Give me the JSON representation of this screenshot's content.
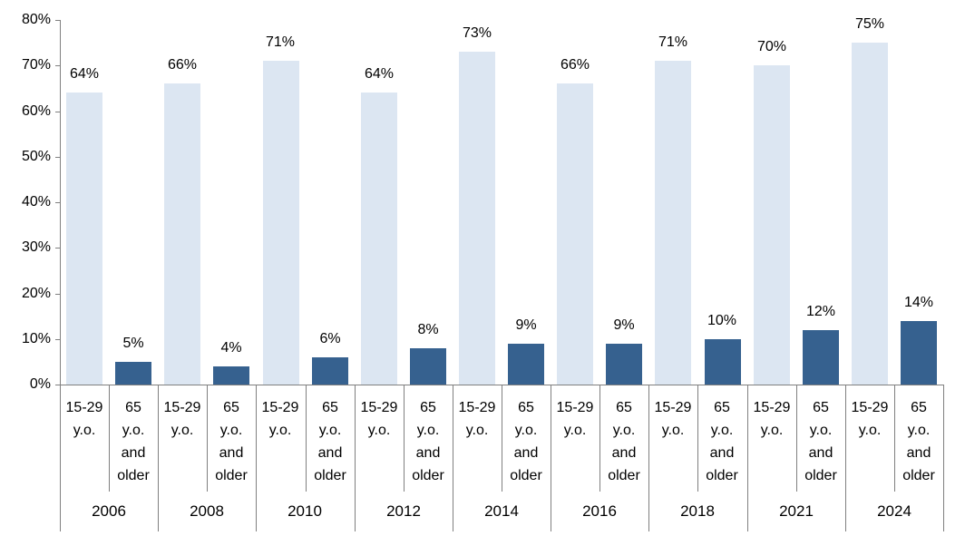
{
  "chart_data": {
    "type": "bar",
    "title": "",
    "xlabel": "",
    "ylabel": "",
    "categories": [
      "2006",
      "2008",
      "2010",
      "2012",
      "2014",
      "2016",
      "2018",
      "2021",
      "2024"
    ],
    "series": [
      {
        "name": "15-29 y.o.",
        "color": "#DCE6F2",
        "values": [
          64,
          66,
          71,
          64,
          73,
          66,
          71,
          70,
          75
        ]
      },
      {
        "name": "65 y.o. and older",
        "color": "#36618F",
        "values": [
          5,
          4,
          6,
          8,
          9,
          9,
          10,
          12,
          14
        ]
      }
    ],
    "data_label_suffix": "%",
    "data_labels_position": "outside-end",
    "sub_category_lines": [
      [
        "15-29",
        "y.o."
      ],
      [
        "65",
        "y.o.",
        "and",
        "older"
      ]
    ],
    "y_axis": {
      "min": 0,
      "max": 80,
      "step": 10,
      "tick_labels": [
        "0%",
        "10%",
        "20%",
        "30%",
        "40%",
        "50%",
        "60%",
        "70%",
        "80%"
      ]
    },
    "legend_position": "none",
    "grid": false
  },
  "colors": {
    "light_bar": "#DCE6F2",
    "dark_bar": "#36618F",
    "axis_line": "#808080",
    "category_border": "#808080",
    "text": "#000000",
    "background": "#FFFFFF"
  }
}
